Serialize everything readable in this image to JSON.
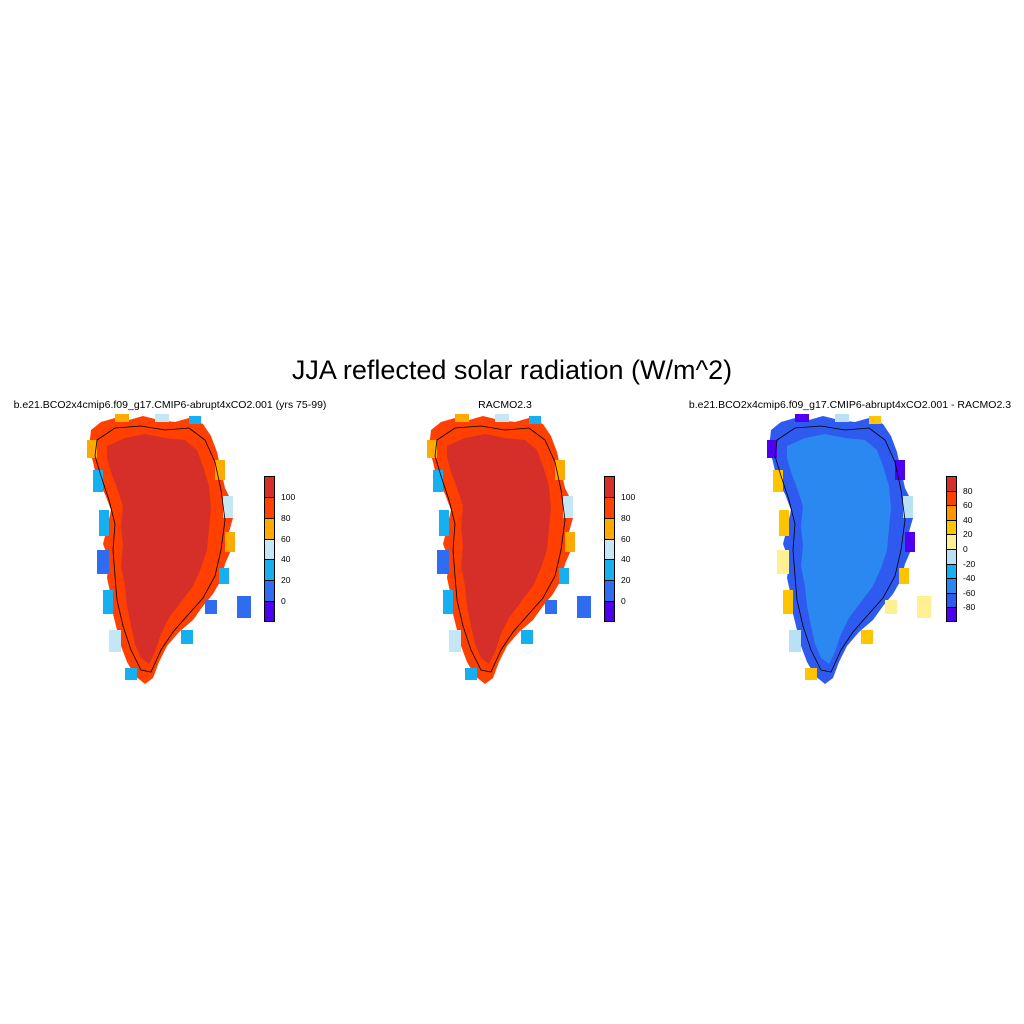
{
  "title": "JJA reflected solar radiation (W/m^2)",
  "panels": [
    {
      "title": "b.e21.BCO2x4cmip6.f09_g17.CMIP6-abrupt4xCO2.001 (yrs 75-99)",
      "interior_color": "#d62f2a",
      "colorbar": {
        "labels": [
          "100",
          "80",
          "60",
          "40",
          "20",
          "0"
        ],
        "colors": [
          "#d62f2a",
          "#ff4000",
          "#ffaa00",
          "#c4e6f5",
          "#16aff0",
          "#2f6cf0",
          "#4e00f0"
        ]
      }
    },
    {
      "title": "RACMO2.3",
      "interior_color": "#d62f2a",
      "colorbar": {
        "labels": [
          "100",
          "80",
          "60",
          "40",
          "20",
          "0"
        ],
        "colors": [
          "#d62f2a",
          "#ff4000",
          "#ffaa00",
          "#c4e6f5",
          "#16aff0",
          "#2f6cf0",
          "#4e00f0"
        ]
      }
    },
    {
      "title": "b.e21.BCO2x4cmip6.f09_g17.CMIP6-abrupt4xCO2.001 - RACMO2.3",
      "interior_color": "#2a88f0",
      "colorbar": {
        "labels": [
          "80",
          "60",
          "40",
          "20",
          "0",
          "-20",
          "-40",
          "-60",
          "-80"
        ],
        "colors": [
          "#d62f2a",
          "#ff4000",
          "#ff9500",
          "#ffc400",
          "#fff191",
          "#b9e0f5",
          "#16aff0",
          "#2a88f0",
          "#2f5af0",
          "#4e00f0"
        ]
      }
    }
  ]
}
